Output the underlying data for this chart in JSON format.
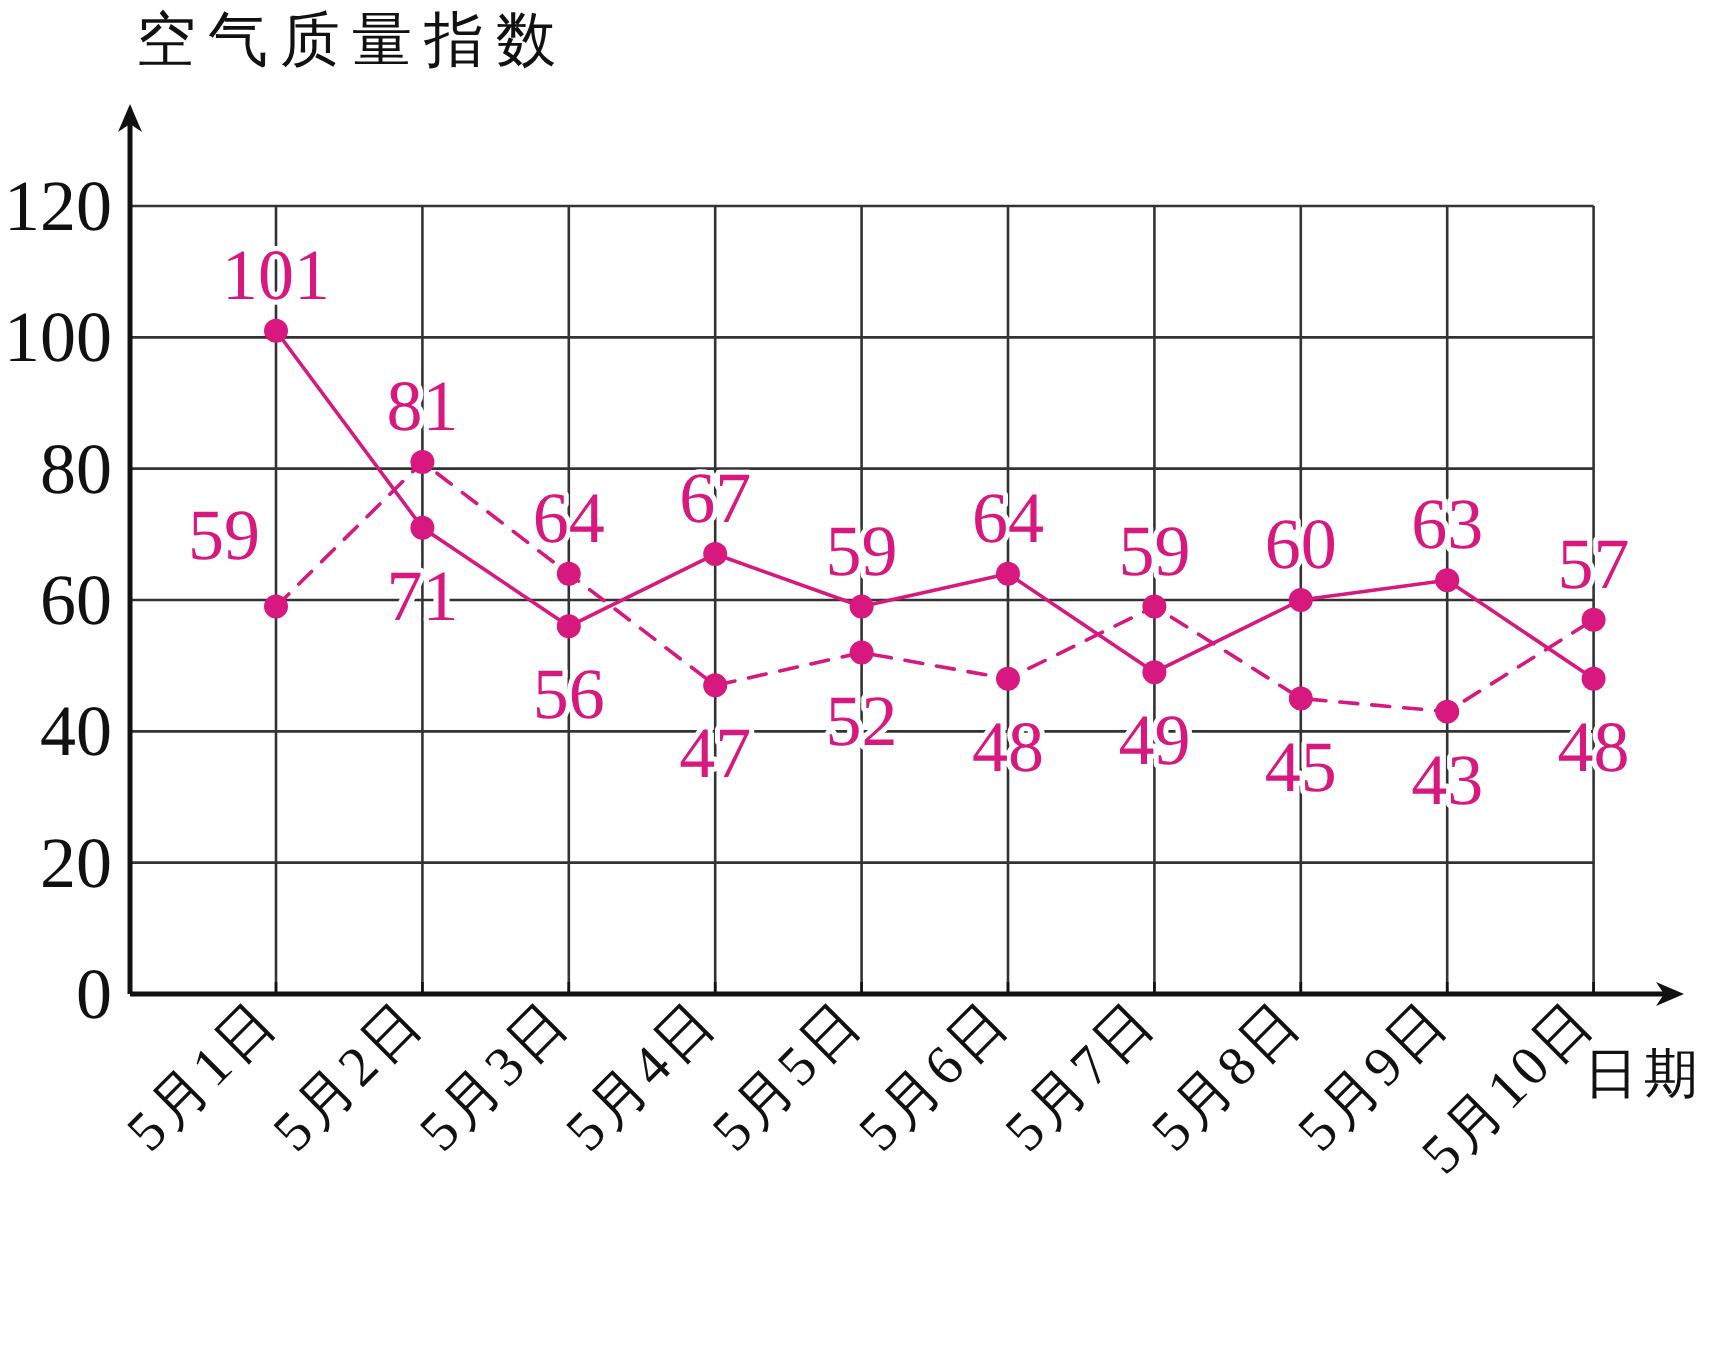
{
  "chart_data": {
    "type": "line",
    "ylabel": "空气质量指数",
    "xlabel": "日期",
    "categories": [
      "5月1日",
      "5月2日",
      "5月3日",
      "5月4日",
      "5月5日",
      "5月6日",
      "5月7日",
      "5月8日",
      "5月9日",
      "5月10日"
    ],
    "series": [
      {
        "color": "#d6187f",
        "line_style": "solid",
        "values": [
          101,
          71,
          56,
          67,
          59,
          64,
          49,
          60,
          63,
          48
        ]
      },
      {
        "color": "#d6187f",
        "line_style": "dashed",
        "values": [
          59,
          81,
          64,
          47,
          52,
          48,
          59,
          45,
          43,
          57
        ]
      }
    ],
    "ylim": [
      0,
      120
    ],
    "yticks": [
      0,
      20,
      40,
      60,
      80,
      100,
      120
    ],
    "grid": true,
    "marker": "circle",
    "data_labels": true
  }
}
